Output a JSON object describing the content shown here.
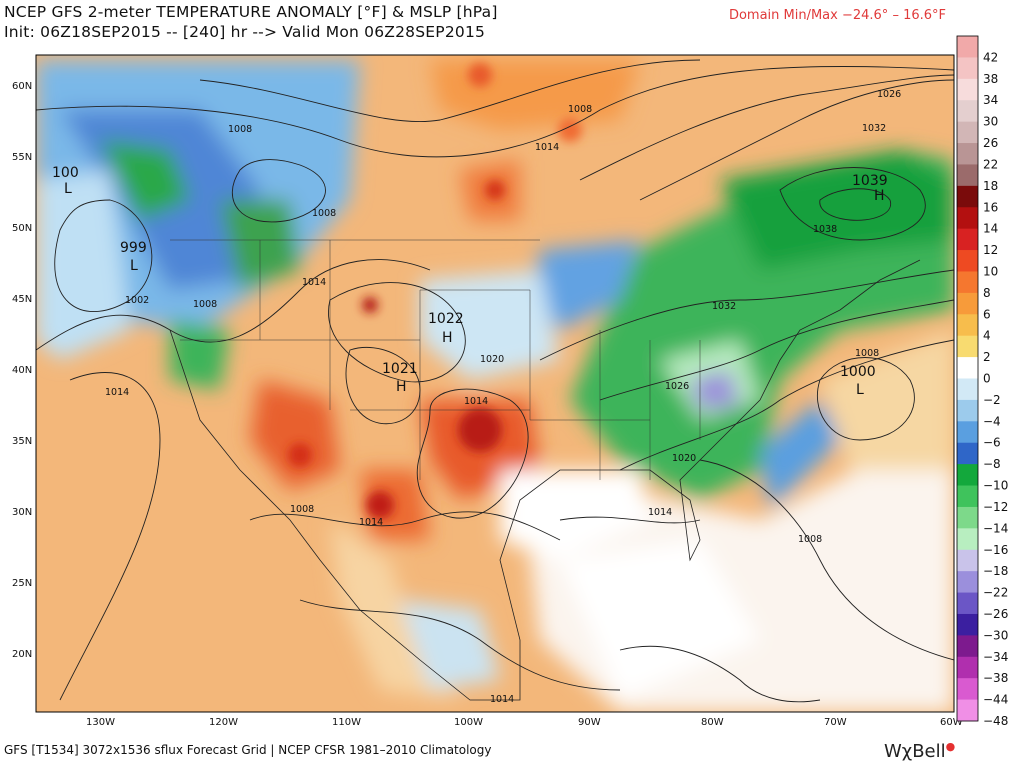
{
  "header": {
    "title": "NCEP GFS 2-meter TEMPERATURE ANOMALY [°F] & MSLP [hPa]",
    "subtitle": "Init: 06Z18SEP2015 -- [240] hr --> Valid Mon 06Z28SEP2015",
    "minmax": "Domain Min/Max −24.6° –  16.6°F"
  },
  "footer": {
    "text": "GFS [T1534] 3072x1536 sflux Forecast Grid | NCEP CFSR 1981–2010 Climatology",
    "brand": "WχBell"
  },
  "axes": {
    "lat_labels": [
      "60N",
      "55N",
      "50N",
      "45N",
      "40N",
      "35N",
      "30N",
      "25N",
      "20N"
    ],
    "lon_labels": [
      "130W",
      "120W",
      "110W",
      "100W",
      "90W",
      "80W",
      "70W",
      "60W"
    ]
  },
  "colorbar": {
    "labels": [
      "42",
      "38",
      "34",
      "30",
      "26",
      "22",
      "18",
      "16",
      "14",
      "12",
      "10",
      "8",
      "6",
      "4",
      "2",
      "0",
      "−2",
      "−4",
      "−6",
      "−8",
      "−10",
      "−12",
      "−14",
      "−16",
      "−18",
      "−22",
      "−26",
      "−30",
      "−34",
      "−38",
      "−44",
      "−48"
    ],
    "colors": [
      "#f1a9a9",
      "#f4c4c4",
      "#f7dcdc",
      "#e4cfcf",
      "#d2b6b6",
      "#b99595",
      "#9b6b6b",
      "#7a0b0b",
      "#b31010",
      "#d82222",
      "#ee4a22",
      "#f5772f",
      "#f79b3a",
      "#f7bd4c",
      "#f8db70",
      "#ffffff",
      "#d2e9f6",
      "#9ccbec",
      "#5a9fe0",
      "#2f66c8",
      "#13a83c",
      "#3fc35c",
      "#7dd98a",
      "#b8eec0",
      "#c9c3ea",
      "#9b8fdc",
      "#6b56c6",
      "#3b1fa0",
      "#7d1a8e",
      "#b02fae",
      "#d95ad0",
      "#f08fe6"
    ]
  },
  "pressure_centers": [
    {
      "type": "L",
      "value": "100",
      "color": "#e03030"
    },
    {
      "type": "L",
      "value": "999",
      "color": "#e03030"
    },
    {
      "type": "H",
      "value": "1022",
      "color": "#2050c0"
    },
    {
      "type": "H",
      "value": "1021",
      "color": "#2050c0"
    },
    {
      "type": "L",
      "value": "1000",
      "color": "#e03030"
    },
    {
      "type": "H",
      "value": "1039",
      "color": "#2050c0"
    }
  ],
  "isobar_labels": [
    "1008",
    "1008",
    "1008",
    "1008",
    "1014",
    "1014",
    "1014",
    "1014",
    "1014",
    "1014",
    "1020",
    "1020",
    "1020",
    "1026",
    "1026",
    "1032",
    "1032",
    "1038",
    "1008",
    "1008",
    "1002",
    "1014",
    "1008"
  ]
}
